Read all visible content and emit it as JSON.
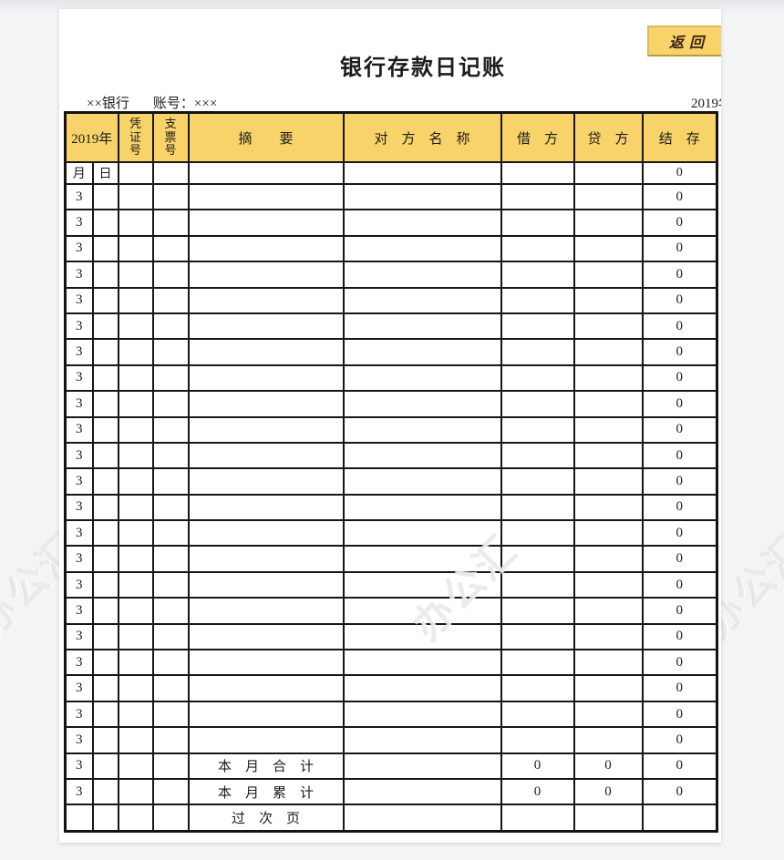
{
  "page": {
    "title": "银行存款日记账",
    "bank_label": "××银行",
    "account_label": "账号：×××",
    "year_label": "2019年",
    "back_button_label": "返回"
  },
  "watermark": {
    "text": "办公汇"
  },
  "colors": {
    "header_yellow": "#f8d36a",
    "button_yellow": "#f8d36a",
    "button_border": "#bb9c3b",
    "button_text": "#3b2317",
    "table_border": "#161616",
    "background": "#f3f4f6"
  },
  "table": {
    "header": {
      "year": "2019年",
      "voucher_no": "凭证号",
      "check_no": "支票号",
      "summary": "摘　　要",
      "counterparty": "对　方　名　称",
      "debit": "借　方",
      "credit": "贷　方",
      "balance": "结　存"
    },
    "subheader": {
      "month": "月",
      "day": "日",
      "balance": "0"
    },
    "body_rows": [
      {
        "month": "3",
        "day": "",
        "voucher": "",
        "check": "",
        "summary": "",
        "counterparty": "",
        "debit": "",
        "credit": "",
        "balance": "0"
      },
      {
        "month": "3",
        "day": "",
        "voucher": "",
        "check": "",
        "summary": "",
        "counterparty": "",
        "debit": "",
        "credit": "",
        "balance": "0"
      },
      {
        "month": "3",
        "day": "",
        "voucher": "",
        "check": "",
        "summary": "",
        "counterparty": "",
        "debit": "",
        "credit": "",
        "balance": "0"
      },
      {
        "month": "3",
        "day": "",
        "voucher": "",
        "check": "",
        "summary": "",
        "counterparty": "",
        "debit": "",
        "credit": "",
        "balance": "0"
      },
      {
        "month": "3",
        "day": "",
        "voucher": "",
        "check": "",
        "summary": "",
        "counterparty": "",
        "debit": "",
        "credit": "",
        "balance": "0"
      },
      {
        "month": "3",
        "day": "",
        "voucher": "",
        "check": "",
        "summary": "",
        "counterparty": "",
        "debit": "",
        "credit": "",
        "balance": "0"
      },
      {
        "month": "3",
        "day": "",
        "voucher": "",
        "check": "",
        "summary": "",
        "counterparty": "",
        "debit": "",
        "credit": "",
        "balance": "0"
      },
      {
        "month": "3",
        "day": "",
        "voucher": "",
        "check": "",
        "summary": "",
        "counterparty": "",
        "debit": "",
        "credit": "",
        "balance": "0"
      },
      {
        "month": "3",
        "day": "",
        "voucher": "",
        "check": "",
        "summary": "",
        "counterparty": "",
        "debit": "",
        "credit": "",
        "balance": "0"
      },
      {
        "month": "3",
        "day": "",
        "voucher": "",
        "check": "",
        "summary": "",
        "counterparty": "",
        "debit": "",
        "credit": "",
        "balance": "0"
      },
      {
        "month": "3",
        "day": "",
        "voucher": "",
        "check": "",
        "summary": "",
        "counterparty": "",
        "debit": "",
        "credit": "",
        "balance": "0"
      },
      {
        "month": "3",
        "day": "",
        "voucher": "",
        "check": "",
        "summary": "",
        "counterparty": "",
        "debit": "",
        "credit": "",
        "balance": "0"
      },
      {
        "month": "3",
        "day": "",
        "voucher": "",
        "check": "",
        "summary": "",
        "counterparty": "",
        "debit": "",
        "credit": "",
        "balance": "0"
      },
      {
        "month": "3",
        "day": "",
        "voucher": "",
        "check": "",
        "summary": "",
        "counterparty": "",
        "debit": "",
        "credit": "",
        "balance": "0"
      },
      {
        "month": "3",
        "day": "",
        "voucher": "",
        "check": "",
        "summary": "",
        "counterparty": "",
        "debit": "",
        "credit": "",
        "balance": "0"
      },
      {
        "month": "3",
        "day": "",
        "voucher": "",
        "check": "",
        "summary": "",
        "counterparty": "",
        "debit": "",
        "credit": "",
        "balance": "0"
      },
      {
        "month": "3",
        "day": "",
        "voucher": "",
        "check": "",
        "summary": "",
        "counterparty": "",
        "debit": "",
        "credit": "",
        "balance": "0"
      },
      {
        "month": "3",
        "day": "",
        "voucher": "",
        "check": "",
        "summary": "",
        "counterparty": "",
        "debit": "",
        "credit": "",
        "balance": "0"
      },
      {
        "month": "3",
        "day": "",
        "voucher": "",
        "check": "",
        "summary": "",
        "counterparty": "",
        "debit": "",
        "credit": "",
        "balance": "0"
      },
      {
        "month": "3",
        "day": "",
        "voucher": "",
        "check": "",
        "summary": "",
        "counterparty": "",
        "debit": "",
        "credit": "",
        "balance": "0"
      },
      {
        "month": "3",
        "day": "",
        "voucher": "",
        "check": "",
        "summary": "",
        "counterparty": "",
        "debit": "",
        "credit": "",
        "balance": "0"
      },
      {
        "month": "3",
        "day": "",
        "voucher": "",
        "check": "",
        "summary": "",
        "counterparty": "",
        "debit": "",
        "credit": "",
        "balance": "0"
      }
    ],
    "summary_rows": [
      {
        "month": "3",
        "day": "",
        "voucher": "",
        "check": "",
        "label": "本　月　合　计",
        "counterparty": "",
        "debit": "0",
        "credit": "0",
        "balance": "0"
      },
      {
        "month": "3",
        "day": "",
        "voucher": "",
        "check": "",
        "label": "本　月　累　计",
        "counterparty": "",
        "debit": "0",
        "credit": "0",
        "balance": "0"
      },
      {
        "month": "",
        "day": "",
        "voucher": "",
        "check": "",
        "label": "过　次　页",
        "counterparty": "",
        "debit": "",
        "credit": "",
        "balance": ""
      }
    ]
  }
}
